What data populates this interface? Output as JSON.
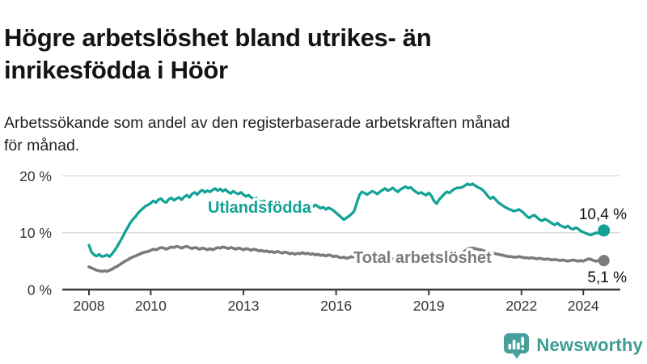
{
  "header": {
    "title_line1": "Högre arbetslöshet bland utrikes- än",
    "title_line2": "inrikesfödda i Höör",
    "subtitle_line1": "Arbetssökande som andel av den registerbaserade arbetskraften månad",
    "subtitle_line2": "för månad."
  },
  "chart_data": {
    "type": "line",
    "unit": "%",
    "x_start": {
      "year": 2008,
      "month": 1
    },
    "x_end": {
      "year": 2024,
      "month": 9
    },
    "ylim": [
      0,
      21
    ],
    "grid": "horizontal",
    "x_ticks": [
      {
        "year": 2008,
        "label": "2008"
      },
      {
        "year": 2010,
        "label": "2010"
      },
      {
        "year": 2013,
        "label": "2013"
      },
      {
        "year": 2016,
        "label": "2016"
      },
      {
        "year": 2019,
        "label": "2019"
      },
      {
        "year": 2022,
        "label": "2022"
      },
      {
        "year": 2024,
        "label": "2024"
      }
    ],
    "y_ticks": [
      {
        "value": 0,
        "label": "0 %"
      },
      {
        "value": 10,
        "label": "10 %"
      },
      {
        "value": 20,
        "label": "20 %"
      }
    ],
    "series": [
      {
        "id": "utlandsfodda",
        "name": "Utlandsfödda",
        "color": "#12A295",
        "end_label": "10,4 %",
        "end_value": 10.4,
        "values": [
          7.8,
          6.6,
          6.1,
          5.9,
          6.2,
          5.8,
          5.9,
          6.1,
          5.8,
          6.3,
          6.9,
          7.6,
          8.4,
          9.2,
          10.1,
          10.9,
          11.7,
          12.3,
          12.8,
          13.4,
          13.9,
          14.3,
          14.7,
          14.9,
          15.2,
          15.6,
          15.3,
          15.8,
          16.0,
          15.5,
          15.3,
          15.9,
          16.1,
          15.7,
          16.0,
          16.2,
          15.8,
          16.3,
          16.6,
          16.2,
          16.8,
          17.1,
          16.7,
          17.2,
          17.5,
          17.1,
          17.4,
          17.2,
          17.5,
          17.8,
          17.4,
          17.7,
          17.3,
          17.6,
          17.2,
          16.9,
          17.3,
          17.0,
          16.8,
          17.1,
          16.7,
          16.4,
          16.6,
          16.2,
          15.9,
          16.1,
          15.7,
          15.4,
          15.6,
          15.2,
          15.0,
          15.3,
          14.9,
          15.1,
          14.8,
          15.0,
          14.6,
          14.9,
          14.5,
          14.7,
          14.3,
          14.6,
          14.8,
          14.5,
          14.9,
          15.1,
          14.8,
          14.6,
          14.9,
          14.6,
          14.3,
          14.5,
          14.1,
          14.4,
          14.2,
          13.9,
          13.5,
          13.1,
          12.7,
          12.3,
          12.6,
          12.9,
          13.3,
          13.8,
          15.2,
          16.6,
          17.2,
          17.0,
          16.7,
          17.0,
          17.3,
          17.1,
          16.8,
          17.2,
          17.5,
          17.8,
          17.4,
          17.6,
          17.9,
          17.5,
          17.2,
          17.6,
          17.9,
          18.1,
          17.8,
          18.0,
          17.5,
          17.2,
          16.9,
          17.1,
          16.8,
          16.6,
          17.0,
          16.5,
          15.6,
          15.1,
          15.8,
          16.3,
          16.8,
          17.2,
          17.0,
          17.4,
          17.7,
          17.9,
          17.9,
          18.0,
          18.3,
          18.6,
          18.4,
          18.6,
          18.3,
          18.0,
          17.8,
          17.5,
          17.0,
          16.4,
          16.0,
          16.3,
          15.8,
          15.3,
          15.0,
          14.7,
          14.4,
          14.2,
          14.0,
          13.8,
          13.9,
          14.1,
          13.8,
          13.4,
          12.9,
          12.6,
          12.9,
          13.1,
          12.7,
          12.3,
          12.1,
          12.4,
          12.2,
          11.9,
          11.6,
          11.4,
          11.7,
          11.3,
          11.1,
          10.9,
          11.2,
          10.8,
          10.6,
          10.9,
          10.7,
          10.3,
          10.1,
          9.9,
          9.7,
          9.6,
          9.8,
          10.0,
          9.9,
          10.2,
          10.4
        ]
      },
      {
        "id": "total",
        "name": "Total arbetslöshet",
        "color": "#7B7B7B",
        "end_label": "5,1 %",
        "end_value": 5.1,
        "values": [
          4.0,
          3.8,
          3.6,
          3.4,
          3.3,
          3.2,
          3.3,
          3.2,
          3.4,
          3.6,
          3.9,
          4.1,
          4.4,
          4.7,
          5.0,
          5.2,
          5.5,
          5.7,
          5.9,
          6.1,
          6.3,
          6.5,
          6.6,
          6.7,
          6.9,
          7.1,
          7.0,
          7.2,
          7.4,
          7.3,
          7.1,
          7.3,
          7.5,
          7.4,
          7.6,
          7.5,
          7.3,
          7.5,
          7.6,
          7.4,
          7.2,
          7.4,
          7.3,
          7.1,
          7.3,
          7.2,
          7.0,
          7.2,
          7.0,
          7.2,
          7.4,
          7.3,
          7.5,
          7.4,
          7.2,
          7.4,
          7.3,
          7.1,
          7.3,
          7.2,
          7.0,
          7.2,
          7.1,
          6.9,
          7.1,
          7.0,
          6.8,
          6.9,
          6.7,
          6.8,
          6.6,
          6.7,
          6.5,
          6.7,
          6.6,
          6.4,
          6.6,
          6.5,
          6.3,
          6.4,
          6.2,
          6.4,
          6.3,
          6.5,
          6.3,
          6.4,
          6.2,
          6.3,
          6.1,
          6.2,
          6.0,
          6.1,
          5.9,
          6.1,
          6.0,
          5.8,
          5.9,
          5.7,
          5.6,
          5.7,
          5.5,
          5.6,
          5.8,
          5.7,
          5.9,
          5.8,
          5.7,
          5.8,
          5.6,
          5.7,
          5.5,
          5.6,
          5.4,
          5.5,
          5.6,
          5.4,
          5.5,
          5.3,
          5.4,
          5.5,
          5.3,
          5.4,
          5.2,
          5.3,
          5.1,
          5.2,
          5.3,
          5.2,
          5.4,
          5.3,
          5.5,
          5.4,
          5.5,
          5.6,
          5.4,
          5.5,
          5.7,
          5.6,
          5.8,
          5.7,
          5.9,
          5.8,
          6.0,
          6.1,
          6.3,
          6.5,
          6.8,
          7.1,
          7.3,
          7.3,
          7.2,
          7.1,
          7.0,
          6.9,
          6.7,
          6.6,
          6.5,
          6.4,
          6.3,
          6.2,
          6.1,
          6.0,
          5.9,
          5.8,
          5.8,
          5.7,
          5.7,
          5.8,
          5.7,
          5.6,
          5.6,
          5.5,
          5.6,
          5.5,
          5.4,
          5.5,
          5.4,
          5.3,
          5.4,
          5.3,
          5.2,
          5.3,
          5.2,
          5.1,
          5.2,
          5.1,
          5.0,
          5.1,
          5.2,
          5.1,
          5.0,
          5.1,
          5.0,
          5.2,
          5.4,
          5.3,
          5.1,
          5.0,
          5.1,
          5.2,
          5.1
        ]
      }
    ]
  },
  "footer": {
    "brand": "Newsworthy"
  },
  "colors": {
    "accent_teal": "#12A295",
    "line_gray": "#7B7B7B",
    "gridline": "#D8D8D8",
    "axis": "#3A3A3A",
    "text_dark": "#141414",
    "logo_teal": "#47A09A"
  }
}
